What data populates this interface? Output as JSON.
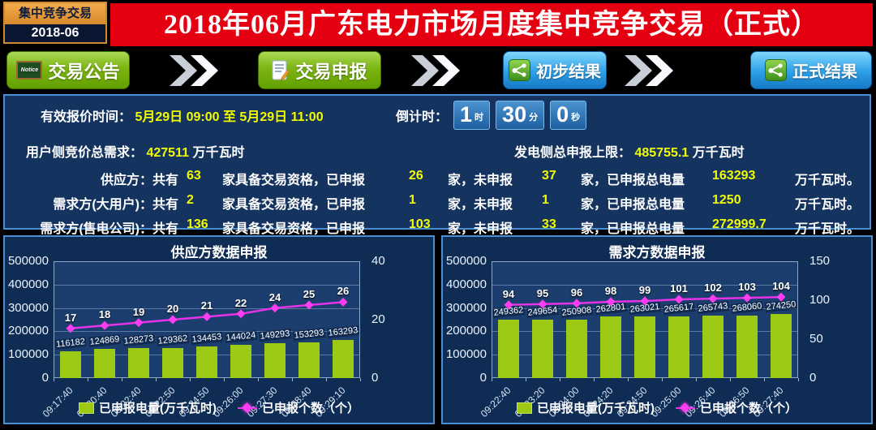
{
  "header": {
    "badge_title": "集中竞争交易",
    "badge_period": "2018-06",
    "title": "2018年06月广东电力市场月度集中竞争交易（正式）"
  },
  "nav": {
    "notice_icon_text": "Notice",
    "buttons": [
      {
        "label": "交易公告",
        "style": "green",
        "icon": "notice-board"
      },
      {
        "label": "交易申报",
        "style": "green",
        "icon": "document-pencil"
      },
      {
        "label": "初步结果",
        "style": "blue",
        "icon": "share-result"
      },
      {
        "label": "正式结果",
        "style": "blue",
        "icon": "share-result"
      }
    ]
  },
  "info": {
    "valid_time_label": "有效报价时间：",
    "valid_time_value": "5月29日 09:00 至 5月29日 11:00",
    "countdown_label": "倒计时：",
    "countdown": {
      "hours": "1",
      "hours_unit": "时",
      "minutes": "30",
      "minutes_unit": "分",
      "seconds": "0",
      "seconds_unit": "秒"
    },
    "demand_label": "用户侧竞价总需求：",
    "demand_value": "427511",
    "demand_unit": "万千瓦时",
    "supply_cap_label": "发电侧总申报上限：",
    "supply_cap_value": "485755.1",
    "supply_cap_unit": "万千瓦时",
    "row_segments": {
      "prefix": "：共有",
      "s1": "家具备交易资格，已申报",
      "s2": "家，未申报",
      "s3": "家，已申报总电量",
      "s4": "万千瓦时。"
    },
    "party_rows": [
      {
        "name": "供应方",
        "total": "63",
        "declared": "26",
        "undeclared": "37",
        "energy": "163293"
      },
      {
        "name": "需求方(大用户)",
        "total": "2",
        "declared": "1",
        "undeclared": "1",
        "energy": "1250"
      },
      {
        "name": "需求方(售电公司)",
        "total": "136",
        "declared": "103",
        "undeclared": "33",
        "energy": "272999.7"
      }
    ]
  },
  "chart_data": [
    {
      "type": "bar+line",
      "title": "供应方数据申报",
      "categories": [
        "09:17:40",
        "09:20:40",
        "09:22:40",
        "09:22:50",
        "09:24:50",
        "09:26:00",
        "09:27:30",
        "09:28:40",
        "09:29:10"
      ],
      "series": [
        {
          "name": "已申报电量(万千瓦时)",
          "type": "bar",
          "axis": "left",
          "color": "#9bc914",
          "values": [
            116182,
            124869,
            128273,
            129362,
            134453,
            144024,
            149293,
            153293,
            163293
          ]
        },
        {
          "name": "已申报个数（个）",
          "type": "line",
          "axis": "right",
          "color": "#e832e8",
          "values": [
            17,
            18,
            19,
            20,
            21,
            22,
            24,
            25,
            26
          ]
        }
      ],
      "left_axis": {
        "min": 0,
        "max": 500000,
        "ticks": [
          500000,
          400000,
          300000,
          200000,
          100000,
          0
        ]
      },
      "right_axis": {
        "min": 0,
        "max": 40,
        "ticks": [
          40,
          20,
          0
        ]
      },
      "legend_position": "bottom",
      "grid": true
    },
    {
      "type": "bar+line",
      "title": "需求方数据申报",
      "categories": [
        "09:22:40",
        "09:23:20",
        "09:24:00",
        "09:24:20",
        "09:24:50",
        "09:25:00",
        "09:26:40",
        "09:26:50",
        "09:27:40"
      ],
      "series": [
        {
          "name": "已申报电量(万千瓦时)",
          "type": "bar",
          "axis": "left",
          "color": "#9bc914",
          "values": [
            249362,
            249654,
            250908,
            262801,
            263021,
            265617,
            265743,
            268060,
            274250
          ]
        },
        {
          "name": "已申报个数（个）",
          "type": "line",
          "axis": "right",
          "color": "#e832e8",
          "values": [
            94,
            95,
            96,
            98,
            99,
            101,
            102,
            103,
            104
          ]
        }
      ],
      "left_axis": {
        "min": 0,
        "max": 500000,
        "ticks": [
          500000,
          400000,
          300000,
          200000,
          100000,
          0
        ]
      },
      "right_axis": {
        "min": 0,
        "max": 150,
        "ticks": [
          150,
          100,
          50,
          0
        ]
      },
      "legend_position": "bottom",
      "grid": true
    }
  ],
  "colors": {
    "banner_red": "#e50011",
    "accent_yellow": "#f2fd00",
    "bar_green": "#9bc914",
    "line_magenta": "#e832e8",
    "panel_border": "#4a8fd4",
    "button_green": "#7db512",
    "button_blue": "#2e9fe6"
  }
}
